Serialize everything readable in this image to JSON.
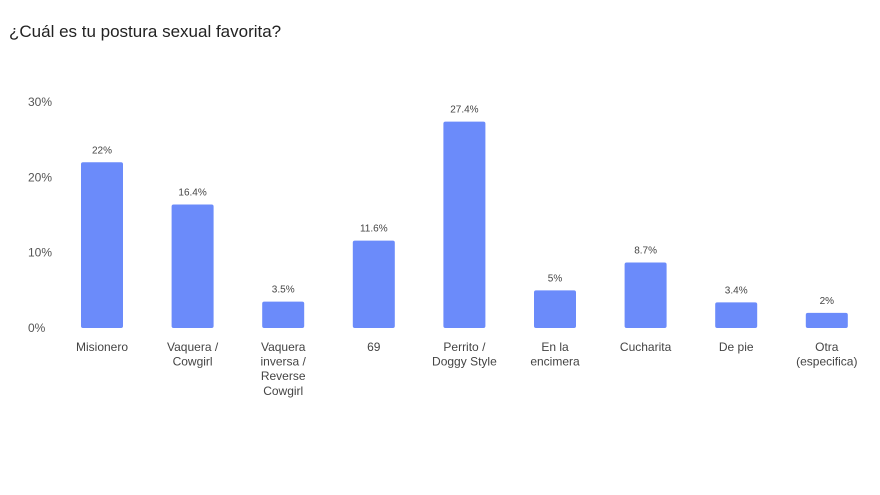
{
  "title": "¿Cuál es tu postura sexual favorita?",
  "chart_data": {
    "type": "bar",
    "title": "¿Cuál es tu postura sexual favorita?",
    "categories": [
      "Misionero",
      "Vaquera / Cowgirl",
      "Vaquera inversa / Reverse Cowgirl",
      "69",
      "Perrito / Doggy Style",
      "En la encimera",
      "Cucharita",
      "De pie",
      "Otra (especifica)"
    ],
    "category_lines": [
      [
        "Misionero"
      ],
      [
        "Vaquera /",
        "Cowgirl"
      ],
      [
        "Vaquera",
        "inversa /",
        "Reverse",
        "Cowgirl"
      ],
      [
        "69"
      ],
      [
        "Perrito /",
        "Doggy Style"
      ],
      [
        "En la",
        "encimera"
      ],
      [
        "Cucharita"
      ],
      [
        "De pie"
      ],
      [
        "Otra",
        "(especifica)"
      ]
    ],
    "values": [
      22,
      16.4,
      3.5,
      11.6,
      27.4,
      5,
      8.7,
      3.4,
      2
    ],
    "value_labels": [
      "22%",
      "16.4%",
      "3.5%",
      "11.6%",
      "27.4%",
      "5%",
      "8.7%",
      "3.4%",
      "2%"
    ],
    "yticks": [
      0,
      10,
      20,
      30
    ],
    "ytick_labels": [
      "0%",
      "10%",
      "20%",
      "30%"
    ],
    "ylim": [
      0,
      30
    ],
    "xlabel": "",
    "ylabel": "",
    "grid": false,
    "bar_color": "#6b8bfa"
  }
}
